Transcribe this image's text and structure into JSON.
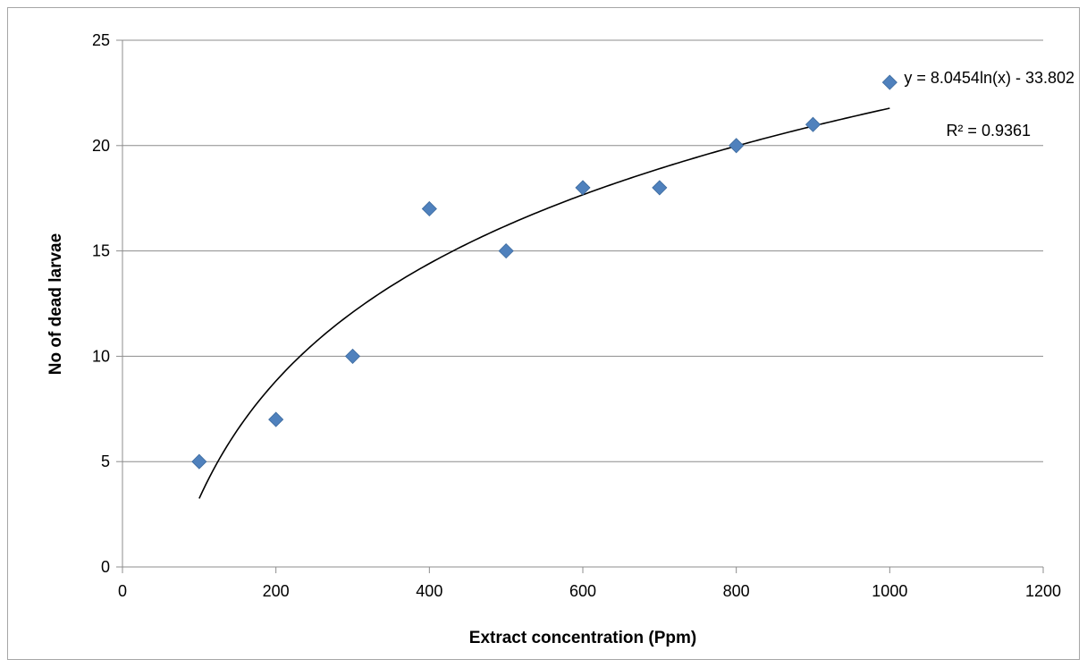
{
  "chart_data": {
    "type": "scatter",
    "title": "",
    "xlabel": "Extract concentration (Ppm)",
    "ylabel": "No of dead larvae",
    "xlim": [
      0,
      1200
    ],
    "ylim": [
      0,
      25
    ],
    "x_ticks": [
      0,
      200,
      400,
      600,
      800,
      1000,
      1200
    ],
    "y_ticks": [
      0,
      5,
      10,
      15,
      20,
      25
    ],
    "grid": "horizontal",
    "legend": "none",
    "marker": "diamond",
    "marker_color": "#4f81bd",
    "series": [
      {
        "x": [
          100,
          200,
          300,
          400,
          500,
          600,
          700,
          800,
          900,
          1000
        ],
        "y": [
          5,
          7,
          10,
          17,
          15,
          18,
          18,
          20,
          21,
          23
        ]
      }
    ],
    "trendline": {
      "type": "logarithmic",
      "a": 8.0454,
      "b": -33.802,
      "x_range": [
        100,
        1000
      ],
      "color": "#000000"
    },
    "annotations": {
      "equation": "y = 8.0454ln(x) - 33.802",
      "r_squared": "R² = 0.9361"
    }
  }
}
